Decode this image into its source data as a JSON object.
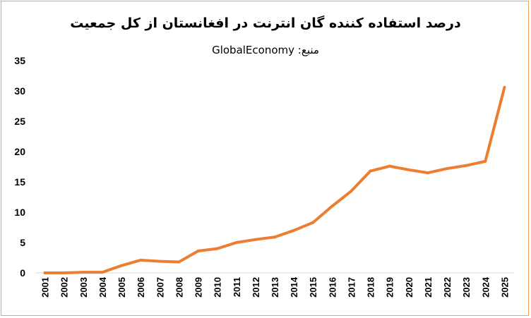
{
  "chart_data": {
    "type": "line",
    "title": "درصد استفاده کننده گان انترنت در افغانستان از کل جمعیت",
    "subtitle": "منبع: GlobalEconomy",
    "xlabel": "",
    "ylabel": "",
    "ylim": [
      0,
      35
    ],
    "yticks": [
      0,
      5,
      10,
      15,
      20,
      25,
      30,
      35
    ],
    "grid": false,
    "legend": "none",
    "line_color": "#ed7d31",
    "x": [
      "2001",
      "2002",
      "2003",
      "2004",
      "2005",
      "2006",
      "2007",
      "2008",
      "2009",
      "2010",
      "2011",
      "2012",
      "2013",
      "2014",
      "2015",
      "2016",
      "2017",
      "2018",
      "2019",
      "2020",
      "2021",
      "2022",
      "2023",
      "2024",
      "2025"
    ],
    "series": [
      {
        "values": [
          0.0,
          0.0,
          0.1,
          0.1,
          1.2,
          2.1,
          1.9,
          1.8,
          3.6,
          4.0,
          5.0,
          5.5,
          5.9,
          7.0,
          8.3,
          11.0,
          13.5,
          16.8,
          17.6,
          17.0,
          16.5,
          17.2,
          17.7,
          18.4,
          30.6
        ]
      }
    ]
  }
}
